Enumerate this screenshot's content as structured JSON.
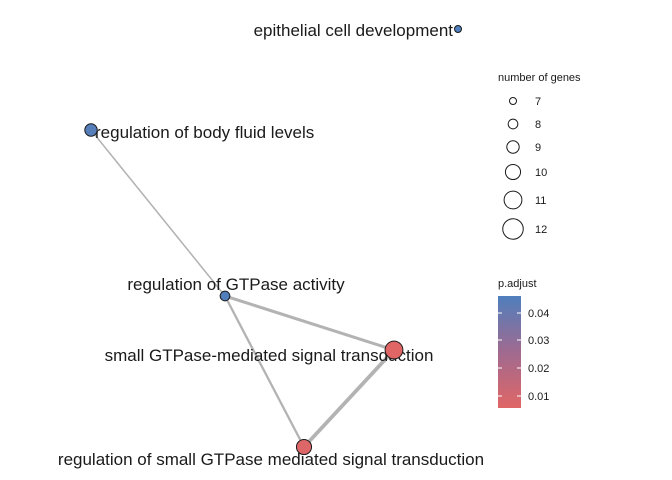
{
  "network": {
    "nodes": [
      {
        "id": "n1",
        "label": "epithelial cell development",
        "genes": 7,
        "p_adjust": 0.046
      },
      {
        "id": "n2",
        "label": "regulation of body fluid levels",
        "genes": 9,
        "p_adjust": 0.044
      },
      {
        "id": "n3",
        "label": "regulation of GTPase activity",
        "genes": 8,
        "p_adjust": 0.045
      },
      {
        "id": "n4",
        "label": "small GTPase-mediated signal transduction",
        "genes": 11,
        "p_adjust": 0.003
      },
      {
        "id": "n5",
        "label": "regulation of small GTPase mediated signal transduction",
        "genes": 10,
        "p_adjust": 0.004
      }
    ],
    "edges": [
      {
        "source": "n2",
        "target": "n3",
        "weight": 1
      },
      {
        "source": "n3",
        "target": "n4",
        "weight": 3
      },
      {
        "source": "n3",
        "target": "n5",
        "weight": 2
      },
      {
        "source": "n4",
        "target": "n5",
        "weight": 4
      }
    ]
  },
  "legend": {
    "size_title": "number of genes",
    "size_items": [
      "7",
      "8",
      "9",
      "10",
      "11",
      "12"
    ],
    "color_title": "p.adjust",
    "color_ticks": [
      "0.04",
      "0.03",
      "0.02",
      "0.01"
    ],
    "color_high": "#4f7fbd",
    "color_low": "#e06666"
  }
}
